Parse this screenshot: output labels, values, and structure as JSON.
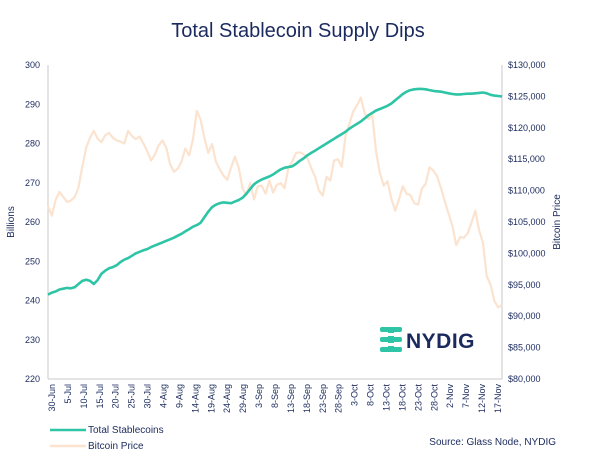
{
  "chart_data": {
    "type": "line",
    "title": "Total Stablecoin Supply Dips",
    "y_left": {
      "label": "Billions",
      "min": 220,
      "max": 300,
      "ticks": [
        "220",
        "230",
        "240",
        "250",
        "260",
        "270",
        "280",
        "290",
        "300"
      ]
    },
    "y_right": {
      "label": "Bitcoin Price",
      "min": 80000,
      "max": 130000,
      "ticks": [
        "$80,000",
        "$85,000",
        "$90,000",
        "$95,000",
        "$100,000",
        "$105,000",
        "$110,000",
        "$115,000",
        "$120,000",
        "$125,000",
        "$130,000"
      ]
    },
    "x_ticks": [
      "30-Jun",
      "5-Jul",
      "10-Jul",
      "15-Jul",
      "20-Jul",
      "25-Jul",
      "30-Jul",
      "4-Aug",
      "9-Aug",
      "14-Aug",
      "19-Aug",
      "24-Aug",
      "29-Aug",
      "3-Sep",
      "8-Sep",
      "13-Sep",
      "18-Sep",
      "23-Sep",
      "28-Sep",
      "3-Oct",
      "8-Oct",
      "13-Oct",
      "18-Oct",
      "23-Oct",
      "28-Oct",
      "2-Nov",
      "7-Nov",
      "12-Nov",
      "17-Nov"
    ],
    "series": [
      {
        "name": "Total Stablecoins",
        "axis": "left",
        "color": "#2ec4a6",
        "values": [
          241.5,
          242.0,
          242.3,
          242.8,
          243.0,
          243.2,
          243.1,
          243.4,
          244.2,
          245.0,
          245.3,
          245.0,
          244.2,
          245.2,
          246.8,
          247.6,
          248.2,
          248.5,
          249.0,
          249.8,
          250.4,
          250.8,
          251.4,
          252.0,
          252.4,
          252.8,
          253.1,
          253.6,
          254.0,
          254.4,
          254.8,
          255.2,
          255.6,
          256.0,
          256.5,
          257.0,
          257.6,
          258.2,
          258.8,
          259.2,
          259.8,
          261.2,
          262.6,
          263.8,
          264.4,
          264.8,
          265.0,
          264.9,
          264.8,
          265.2,
          265.6,
          266.2,
          267.2,
          268.4,
          269.6,
          270.3,
          270.8,
          271.2,
          271.6,
          272.1,
          272.8,
          273.4,
          273.8,
          274.0,
          274.2,
          274.8,
          275.6,
          276.2,
          277.0,
          277.6,
          278.2,
          278.8,
          279.4,
          280.0,
          280.6,
          281.2,
          281.8,
          282.4,
          283.0,
          283.8,
          284.4,
          285.0,
          285.6,
          286.4,
          287.2,
          287.8,
          288.4,
          288.8,
          289.2,
          289.6,
          290.2,
          291.0,
          291.8,
          292.6,
          293.2,
          293.6,
          293.8,
          293.9,
          293.9,
          293.8,
          293.6,
          293.4,
          293.3,
          293.2,
          293.0,
          292.8,
          292.6,
          292.5,
          292.5,
          292.6,
          292.7,
          292.7,
          292.8,
          292.9,
          293.0,
          292.8,
          292.4,
          292.2,
          292.1,
          292.0
        ]
      },
      {
        "name": "Bitcoin Price",
        "axis": "right",
        "color": "#fbe3cf",
        "values": [
          107500,
          106000,
          108500,
          109800,
          109000,
          108200,
          108400,
          109000,
          110500,
          113800,
          116800,
          118400,
          119500,
          118300,
          117700,
          118800,
          119200,
          118400,
          118000,
          117800,
          117500,
          119500,
          118700,
          118200,
          118600,
          117500,
          116300,
          114800,
          115700,
          117200,
          118000,
          116800,
          114200,
          113000,
          113500,
          114600,
          116700,
          115600,
          118200,
          122700,
          121300,
          118400,
          116000,
          117400,
          114600,
          113400,
          112400,
          111700,
          113700,
          115400,
          113600,
          110300,
          109300,
          111200,
          108600,
          110700,
          110800,
          109500,
          111600,
          109700,
          110900,
          111200,
          110400,
          113600,
          114600,
          116000,
          116100,
          115800,
          115200,
          113600,
          112200,
          110000,
          109200,
          112200,
          111600,
          114800,
          115000,
          113800,
          118800,
          120600,
          122600,
          123600,
          124800,
          122300,
          121400,
          122000,
          116200,
          112800,
          110800,
          111500,
          108700,
          106800,
          108600,
          110700,
          109500,
          109300,
          108000,
          107800,
          110300,
          111100,
          113700,
          113200,
          112300,
          110400,
          108300,
          106300,
          104400,
          101300,
          102600,
          102500,
          103200,
          104900,
          106800,
          103700,
          101700,
          96400,
          95000,
          92400,
          91400,
          91800
        ]
      }
    ],
    "legend": [
      "Total Stablecoins",
      "Bitcoin Price"
    ],
    "legend_position": "bottom-left",
    "source": "Source: Glass Node, NYDIG",
    "logo_text": "NYDIG",
    "grid": false
  }
}
